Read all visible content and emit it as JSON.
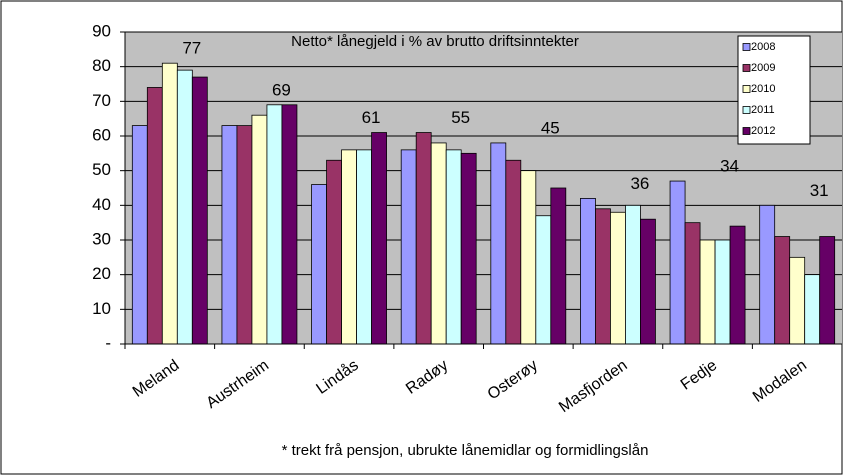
{
  "chart_data": {
    "type": "bar",
    "title": "Netto* lånegjeld i % av brutto driftsinntekter",
    "note": "* trekt frå pensjon, ubrukte lånemidlar og formidlingslån",
    "categories": [
      "Meland",
      "Austrheim",
      "Lindås",
      "Radøy",
      "Osterøy",
      "Masfjorden",
      "Fedje",
      "Modalen"
    ],
    "series": [
      {
        "name": "2008",
        "color": "#9999ff",
        "values": [
          63,
          63,
          46,
          56,
          58,
          42,
          47,
          40
        ]
      },
      {
        "name": "2009",
        "color": "#993366",
        "values": [
          74,
          63,
          53,
          61,
          53,
          39,
          35,
          31
        ]
      },
      {
        "name": "2010",
        "color": "#ffffcc",
        "values": [
          81,
          66,
          56,
          58,
          50,
          38,
          30,
          25
        ]
      },
      {
        "name": "2011",
        "color": "#ccffff",
        "values": [
          79,
          69,
          56,
          56,
          37,
          40,
          30,
          20
        ]
      },
      {
        "name": "2012",
        "color": "#660066",
        "values": [
          77,
          69,
          61,
          55,
          45,
          36,
          34,
          31
        ]
      }
    ],
    "ylim": [
      0,
      90
    ],
    "yticks": [
      {
        "value": 0,
        "label": "-"
      },
      10,
      20,
      30,
      40,
      50,
      60,
      70,
      80,
      90
    ],
    "grid": true,
    "legend": "top-right",
    "plot_background": "#c0c0c0"
  }
}
